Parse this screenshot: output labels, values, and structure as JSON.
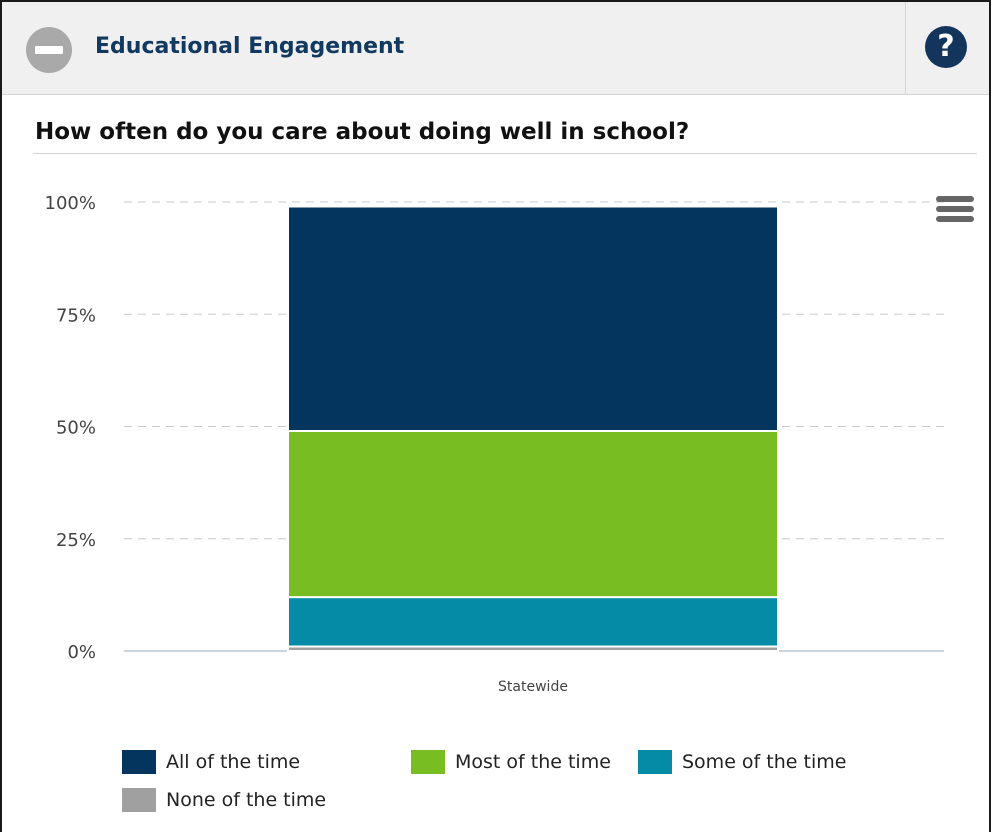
{
  "panel": {
    "title": "Educational Engagement",
    "collapse_icon": "minus-circle-icon",
    "help_icon": "question-circle-icon",
    "help_glyph": "?"
  },
  "question": "How often do you care about doing well in school?",
  "menu_icon": "hamburger-menu-icon",
  "colors": {
    "all": "#03355f",
    "most": "#78bd21",
    "some": "#058ba5",
    "none": "#a0a0a0",
    "grid": "#c8c8c8",
    "header_bg": "#f0f0f0",
    "title_text": "#12395f"
  },
  "chart_data": {
    "type": "bar",
    "stacked": true,
    "categories": [
      "Statewide"
    ],
    "y_ticks": [
      "0%",
      "25%",
      "50%",
      "75%",
      "100%"
    ],
    "ylim": [
      0,
      100
    ],
    "grid": true,
    "legend_position": "bottom",
    "series": [
      {
        "name": "None of the time",
        "values": [
          1
        ],
        "color": "#a0a0a0"
      },
      {
        "name": "Some of the time",
        "values": [
          11
        ],
        "color": "#058ba5"
      },
      {
        "name": "Most of the time",
        "values": [
          37
        ],
        "color": "#78bd21"
      },
      {
        "name": "All of the time",
        "values": [
          50
        ],
        "color": "#03355f"
      }
    ]
  },
  "legend": [
    {
      "label": "All of the time",
      "color": "#03355f"
    },
    {
      "label": "Most of the time",
      "color": "#78bd21"
    },
    {
      "label": "Some of the time",
      "color": "#058ba5"
    },
    {
      "label": "None of the time",
      "color": "#a0a0a0"
    }
  ]
}
